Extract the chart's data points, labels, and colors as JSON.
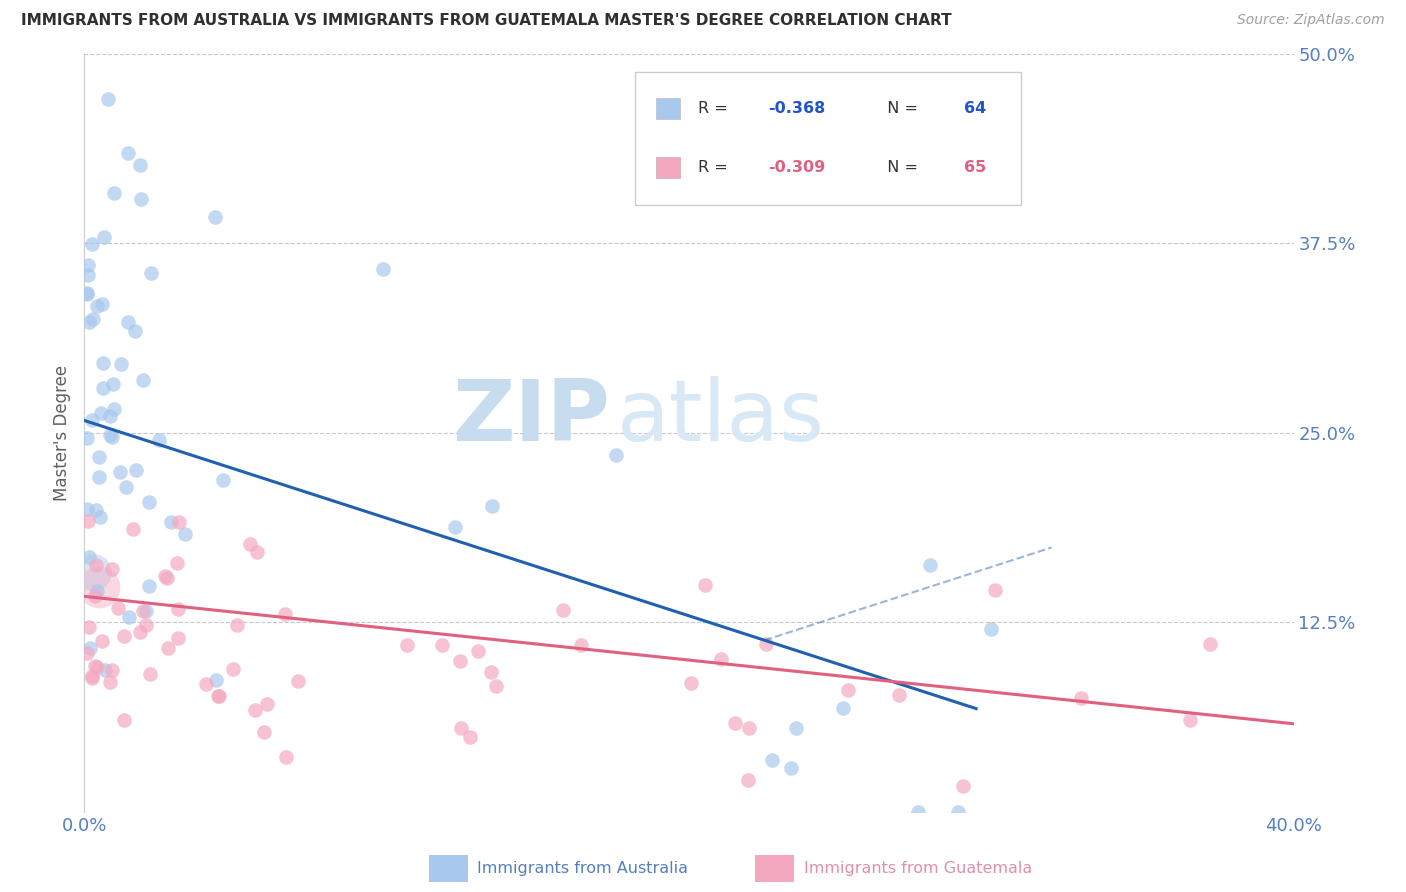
{
  "title": "IMMIGRANTS FROM AUSTRALIA VS IMMIGRANTS FROM GUATEMALA MASTER'S DEGREE CORRELATION CHART",
  "source": "Source: ZipAtlas.com",
  "ylabel": "Master's Degree",
  "x_min": 0.0,
  "x_max": 0.4,
  "y_min": 0.0,
  "y_max": 0.5,
  "australia_R": -0.368,
  "australia_N": 64,
  "guatemala_R": -0.309,
  "guatemala_N": 65,
  "australia_color": "#A8C8EE",
  "guatemala_color": "#F4A8C0",
  "australia_line_color": "#2060B0",
  "guatemala_line_color": "#E06080",
  "legend_australia": "Immigrants from Australia",
  "legend_guatemala": "Immigrants from Guatemala",
  "watermark_zip": "ZIP",
  "watermark_atlas": "atlas",
  "background_color": "#FFFFFF",
  "grid_color": "#C8C8D0",
  "title_color": "#303030",
  "source_color": "#A0A0A0",
  "axis_label_color": "#5580C0",
  "ylabel_color": "#606060"
}
